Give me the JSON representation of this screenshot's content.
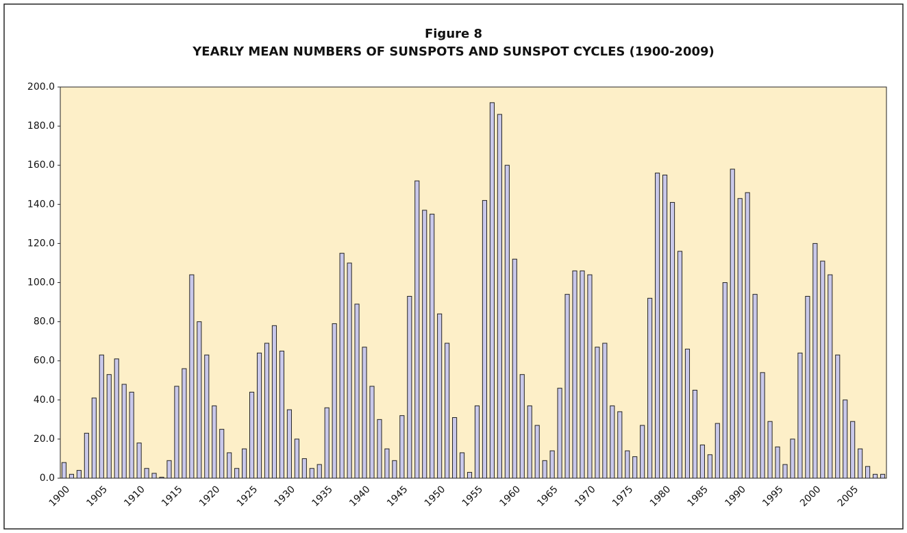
{
  "chart_data": {
    "type": "bar",
    "title": "Figure 8",
    "subtitle": "YEARLY MEAN NUMBERS OF SUNSPOTS AND SUNSPOT CYCLES (1900-2009)",
    "categories": [
      "1900",
      null,
      null,
      null,
      null,
      "1905",
      null,
      null,
      null,
      null,
      "1910",
      null,
      null,
      null,
      null,
      "1915",
      null,
      null,
      null,
      null,
      "1920",
      null,
      null,
      null,
      null,
      "1925",
      null,
      null,
      null,
      null,
      "1930",
      null,
      null,
      null,
      null,
      "1935",
      null,
      null,
      null,
      null,
      "1940",
      null,
      null,
      null,
      null,
      "1945",
      null,
      null,
      null,
      null,
      "1950",
      null,
      null,
      null,
      null,
      "1955",
      null,
      null,
      null,
      null,
      "1960",
      null,
      null,
      null,
      null,
      "1965",
      null,
      null,
      null,
      null,
      "1970",
      null,
      null,
      null,
      null,
      "1975",
      null,
      null,
      null,
      null,
      "1980",
      null,
      null,
      null,
      null,
      "1985",
      null,
      null,
      null,
      null,
      "1990",
      null,
      null,
      null,
      null,
      "1995",
      null,
      null,
      null,
      null,
      "2000",
      null,
      null,
      null,
      null,
      "2005",
      null,
      null,
      null,
      null
    ],
    "values": [
      8,
      2,
      4,
      23,
      41,
      63,
      53,
      61,
      48,
      44,
      18,
      5,
      2.5,
      0.5,
      9,
      47,
      56,
      104,
      80,
      63,
      37,
      25,
      13,
      5,
      15,
      44,
      64,
      69,
      78,
      65,
      35,
      20,
      10,
      5,
      7,
      36,
      79,
      115,
      110,
      89,
      67,
      47,
      30,
      15,
      9,
      32,
      93,
      152,
      137,
      135,
      84,
      69,
      31,
      13,
      3,
      37,
      142,
      192,
      186,
      160,
      112,
      53,
      37,
      27,
      9,
      14,
      46,
      94,
      106,
      106,
      104,
      67,
      69,
      37,
      34,
      14,
      11,
      27,
      92,
      156,
      155,
      141,
      116,
      66,
      45,
      17,
      12,
      28,
      100,
      158,
      143,
      146,
      94,
      54,
      29,
      16,
      7,
      20,
      64,
      93,
      120,
      111,
      104,
      63,
      40,
      29,
      15,
      6,
      2,
      2
    ],
    "color": "#c9c8ea",
    "ylim": [
      0,
      200
    ],
    "yticks": [
      {
        "value": 0,
        "label": "0.0"
      },
      {
        "value": 20,
        "label": "20.0"
      },
      {
        "value": 40,
        "label": "40.0"
      },
      {
        "value": 60,
        "label": "60.0"
      },
      {
        "value": 80,
        "label": "80.0"
      },
      {
        "value": 100,
        "label": "100.0"
      },
      {
        "value": 120,
        "label": "120.0"
      },
      {
        "value": 140,
        "label": "140.0"
      },
      {
        "value": 160,
        "label": "160.0"
      },
      {
        "value": 180,
        "label": "180.0"
      },
      {
        "value": 200,
        "label": "200.0"
      }
    ],
    "grid": false
  }
}
